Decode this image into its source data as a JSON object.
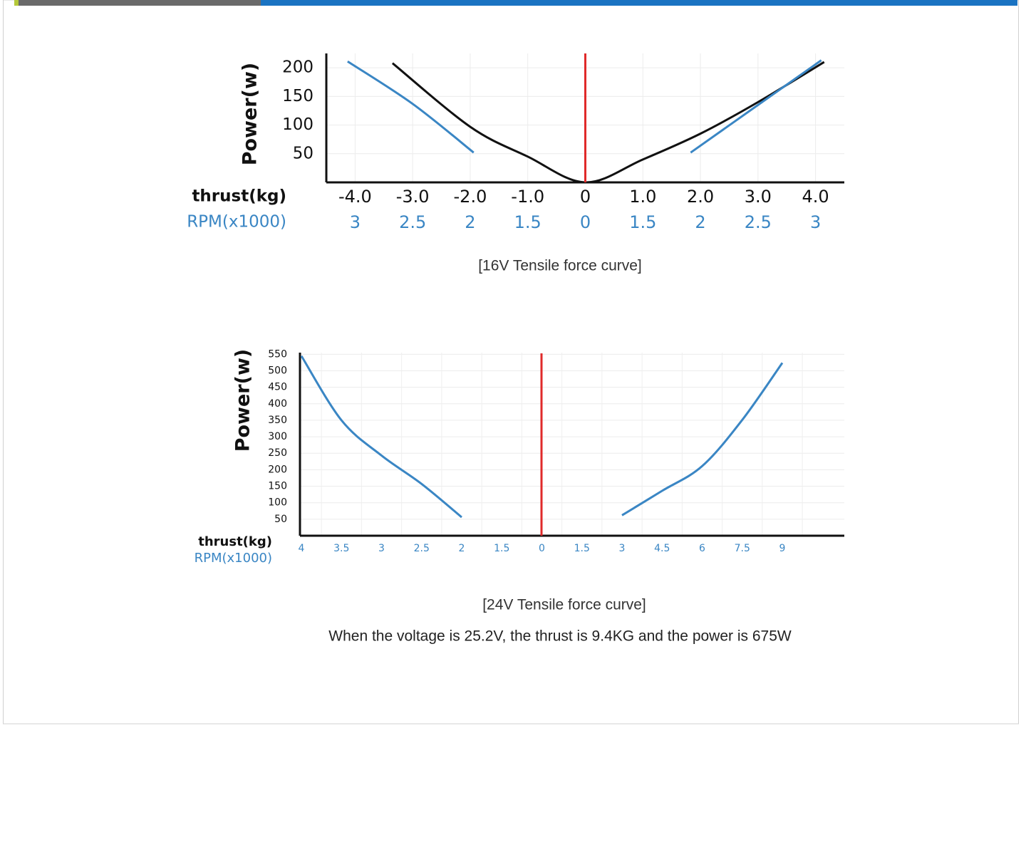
{
  "chart_data": [
    {
      "type": "line",
      "caption": "[16V Tensile force curve]",
      "ylabel": "Power(w)",
      "xlabel": "thrust(kg)",
      "x2label": "RPM(x1000)",
      "xlim": [
        -4.5,
        4.5
      ],
      "ylim": [
        0,
        225
      ],
      "grid": true,
      "xticks": [
        {
          "value": -4,
          "label": "-4.0"
        },
        {
          "value": -3,
          "label": "-3.0"
        },
        {
          "value": -2,
          "label": "-2.0"
        },
        {
          "value": -1,
          "label": "-1.0"
        },
        0,
        {
          "value": 1,
          "label": "1.0"
        },
        {
          "value": 2,
          "label": "2.0"
        },
        {
          "value": 3,
          "label": "3.0"
        },
        {
          "value": 4,
          "label": "4.0"
        }
      ],
      "x2ticklabels": [
        "3",
        "2.5",
        "2",
        "1.5",
        "0",
        "1.5",
        "2",
        "2.5",
        "3"
      ],
      "yticks": [
        50,
        100,
        150,
        200
      ],
      "series": [
        {
          "color": "#111111",
          "x": [
            -3.35,
            -2,
            -1,
            0,
            1,
            2,
            3,
            4.15
          ],
          "values": [
            208,
            97,
            45,
            0,
            40,
            85,
            140,
            210
          ]
        },
        {
          "color": "#3a86c4",
          "x": [
            -4.13,
            -3,
            -1.94,
            0,
            1.83,
            3,
            4.1
          ],
          "values": [
            211,
            137,
            52,
            null,
            52,
            135,
            213
          ]
        }
      ]
    },
    {
      "type": "line",
      "caption": "[24V Tensile force curve]",
      "ylabel": "Power(w)",
      "xlabel": "thrust(kg)",
      "x2label": "RPM(x1000)",
      "ylim": [
        0,
        555
      ],
      "grid": true,
      "categories": [
        "4",
        "3.5",
        "3",
        "2.5",
        "2",
        "1.5",
        "0",
        "1.5",
        "3",
        "4.5",
        "6",
        "7.5",
        "9"
      ],
      "yticks": [
        50,
        100,
        150,
        200,
        250,
        300,
        350,
        400,
        450,
        500,
        550
      ],
      "series": [
        {
          "color": "#3a86c4",
          "values": [
            545,
            350,
            243,
            157,
            56,
            null,
            null,
            null,
            62,
            136,
            211,
            351,
            524
          ]
        }
      ]
    }
  ],
  "note": "When the voltage is 25.2V, the thrust is 9.4KG and the power is 675W"
}
